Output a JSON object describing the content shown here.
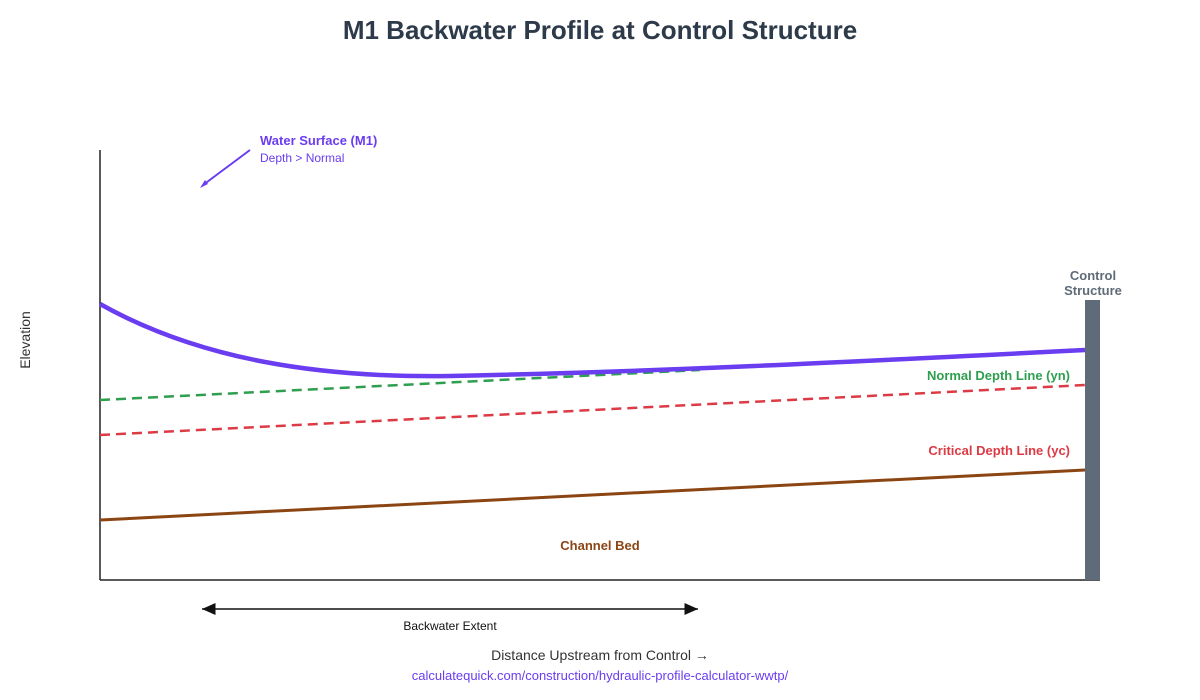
{
  "title": "M1 Backwater Profile at Control Structure",
  "axes": {
    "y_label": "Elevation",
    "x_label": "Distance Upstream from Control →"
  },
  "water_surface": {
    "label": "Water Surface (M1)",
    "sublabel": "Depth > Normal"
  },
  "normal_depth": {
    "label": "Normal Depth Line (yn)"
  },
  "critical_depth": {
    "label": "Critical Depth Line (yc)"
  },
  "channel_bed": {
    "label": "Channel Bed"
  },
  "control": {
    "label_line1": "Control",
    "label_line2": "Structure"
  },
  "backwater_extent": {
    "label": "Backwater Extent"
  },
  "source": {
    "url": "calculatequick.com/construction/hydraulic-profile-calculator-wwtp/"
  },
  "colors": {
    "water": "#6a3df0",
    "normal": "#2e9e4f",
    "critical": "#dc3b45",
    "bed": "#8b4513",
    "control": "#5f6b78",
    "title": "#2d3a4a",
    "url": "#6a3df0"
  }
}
